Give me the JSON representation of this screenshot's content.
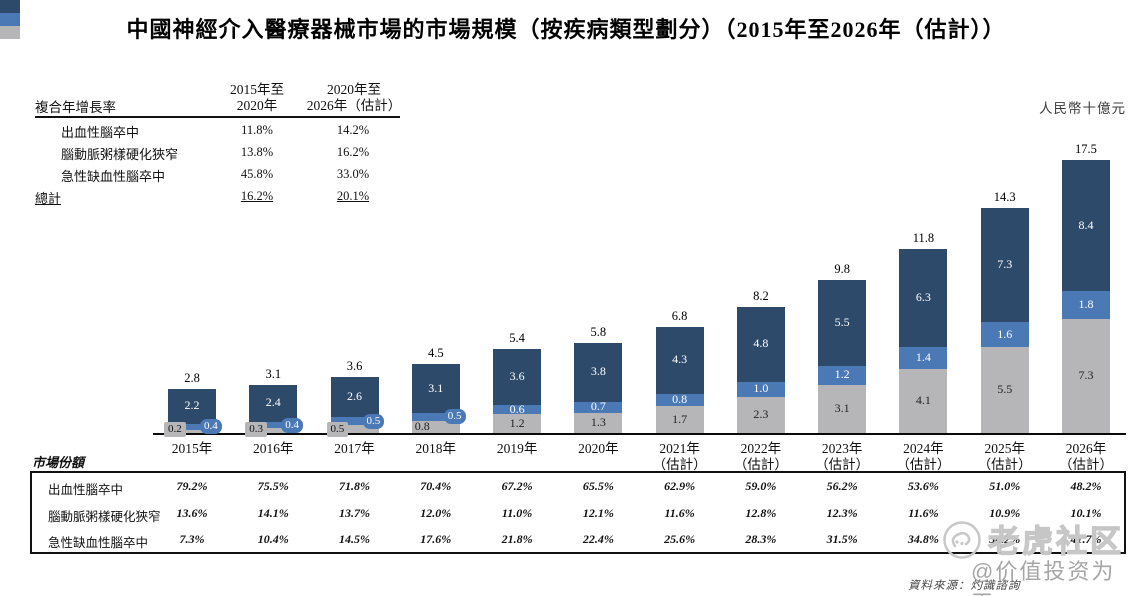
{
  "title": "中國神經介入醫療器械市場的市場規模（按疾病類型劃分）（2015年至2026年（估計））",
  "unit_label": "人民幣十億元",
  "colors": {
    "hemorrhagic": "#2e4a6b",
    "atherosclerotic": "#4a79b5",
    "ischemic": "#b6b6b8",
    "axis": "#0a0a0a"
  },
  "cagr": {
    "header": "複合年增長率",
    "col1_line1": "2015年至",
    "col1_line2": "2020年",
    "col2_line1": "2020年至",
    "col2_line2": "2026年（估計）",
    "rows": [
      {
        "label": "出血性腦卒中",
        "swatch": "hemorrhagic-swatch",
        "v1": "11.8%",
        "v2": "14.2%"
      },
      {
        "label": "腦動脈粥樣硬化狹窄",
        "swatch": "atherosclerotic-swatch",
        "v1": "13.8%",
        "v2": "16.2%"
      },
      {
        "label": "急性缺血性腦卒中",
        "swatch": "ischemic-swatch",
        "v1": "45.8%",
        "v2": "33.0%"
      }
    ],
    "total": {
      "label": "總計",
      "v1": "16.2%",
      "v2": "20.1%"
    }
  },
  "chart_data": {
    "type": "bar",
    "stacked": true,
    "title": "中國神經介入醫療器械市場的市場規模（按疾病類型劃分）",
    "ylabel": "人民幣十億元",
    "ylim": [
      0,
      18
    ],
    "grid": false,
    "legend_position": "top-left",
    "categories": [
      "2015年",
      "2016年",
      "2017年",
      "2018年",
      "2019年",
      "2020年",
      "2021年\n（估計）",
      "2022年\n（估計）",
      "2023年\n（估計）",
      "2024年\n（估計）",
      "2025年\n（估計）",
      "2026年\n（估計）"
    ],
    "series": [
      {
        "name": "出血性腦卒中",
        "color": "#2e4a6b",
        "values": [
          2.2,
          2.4,
          2.6,
          3.1,
          3.6,
          3.8,
          4.3,
          4.8,
          5.5,
          6.3,
          7.3,
          8.4
        ]
      },
      {
        "name": "腦動脈粥樣硬化狹窄",
        "color": "#4a79b5",
        "values": [
          0.4,
          0.4,
          0.5,
          0.5,
          0.6,
          0.7,
          0.8,
          1.0,
          1.2,
          1.4,
          1.6,
          1.8
        ]
      },
      {
        "name": "急性缺血性腦卒中",
        "color": "#b6b6b8",
        "values": [
          0.2,
          0.3,
          0.5,
          0.8,
          1.2,
          1.3,
          1.7,
          2.3,
          3.1,
          4.1,
          5.5,
          7.3
        ]
      }
    ],
    "totals": [
      2.8,
      3.1,
      3.6,
      4.5,
      5.4,
      5.8,
      6.8,
      8.2,
      9.8,
      11.8,
      14.3,
      17.5
    ]
  },
  "share_table": {
    "label": "市場份額",
    "rows": [
      {
        "label": "出血性腦卒中",
        "values": [
          "79.2%",
          "75.5%",
          "71.8%",
          "70.4%",
          "67.2%",
          "65.5%",
          "62.9%",
          "59.0%",
          "56.2%",
          "53.6%",
          "51.0%",
          "48.2%"
        ]
      },
      {
        "label": "腦動脈粥樣硬化狹窄",
        "values": [
          "13.6%",
          "14.1%",
          "13.7%",
          "12.0%",
          "11.0%",
          "12.1%",
          "11.6%",
          "12.8%",
          "12.3%",
          "11.6%",
          "10.9%",
          "10.1%"
        ]
      },
      {
        "label": "急性缺血性腦卒中",
        "values": [
          "7.3%",
          "10.4%",
          "14.5%",
          "17.6%",
          "21.8%",
          "22.4%",
          "25.6%",
          "28.3%",
          "31.5%",
          "34.8%",
          "38.2%",
          "41.7%"
        ]
      }
    ]
  },
  "source": "資料來源：灼識諮詢",
  "watermarks": {
    "community": "老虎社区",
    "user": "@价值投资为王"
  }
}
